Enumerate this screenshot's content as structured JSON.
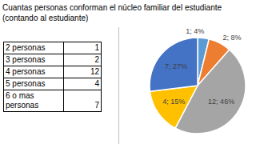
{
  "title": "Cuantas personas conforman el núcleo familiar del estudiante (contando al estudiante)",
  "table": {
    "rows": [
      [
        "2 personas",
        1
      ],
      [
        "3 personas",
        2
      ],
      [
        "4 personas",
        12
      ],
      [
        "5 personas",
        4
      ],
      [
        "6 o mas personas",
        7
      ]
    ]
  },
  "chart_data": {
    "type": "pie",
    "values": [
      1,
      2,
      12,
      4,
      7
    ],
    "value_labels": [
      "1; 4%",
      "2; 8%",
      "12; 46%",
      "4; 15%",
      "7; 27%"
    ],
    "colors": [
      "#5b9bd5",
      "#ed7d31",
      "#a5a5a5",
      "#ffc000",
      "#4472c4"
    ],
    "data_labels": true
  }
}
